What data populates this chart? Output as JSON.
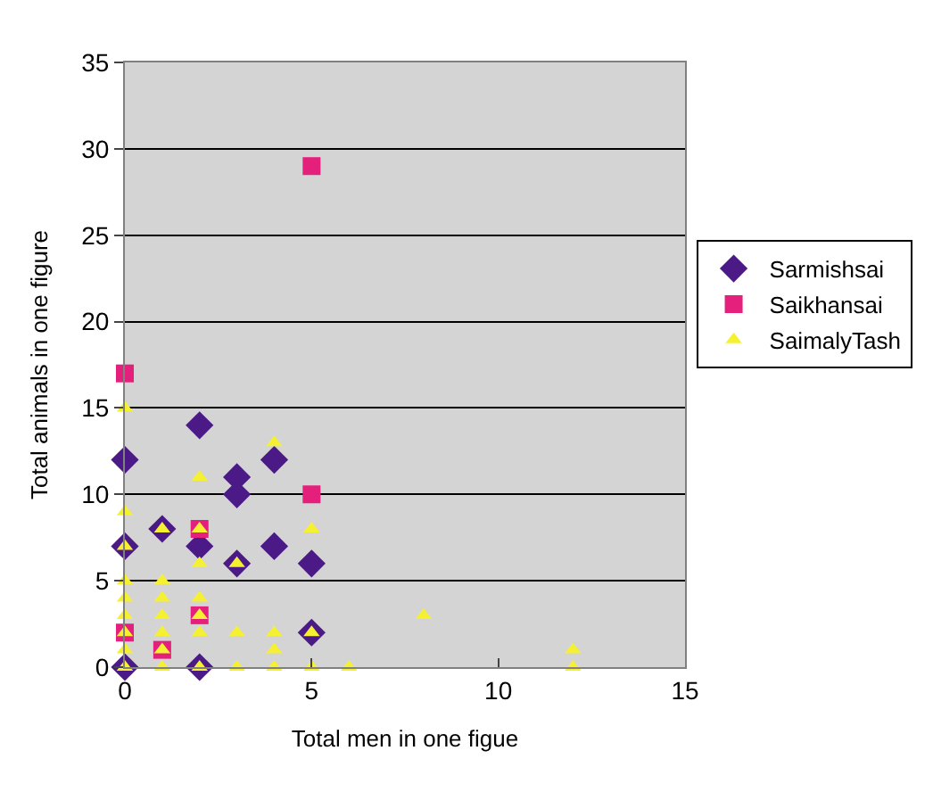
{
  "chart_data": {
    "type": "scatter",
    "xlabel": "Total men in one figue",
    "ylabel": "Total animals in one figure",
    "xlim": [
      0,
      15
    ],
    "xticks": [
      0,
      5,
      10,
      15
    ],
    "ylim": [
      0,
      35
    ],
    "yticks": [
      0,
      5,
      10,
      15,
      20,
      25,
      30,
      35
    ],
    "grid": "y",
    "legend": "right",
    "series": [
      {
        "name": "Sarmishsai",
        "color": "#4b1a87",
        "marker": "diamond",
        "x": [
          0,
          0,
          0,
          1,
          2,
          2,
          2,
          3,
          3,
          3,
          4,
          4,
          5,
          5
        ],
        "values": [
          12,
          7,
          0,
          8,
          14,
          7,
          0,
          11,
          10,
          6,
          12,
          7,
          6,
          2
        ]
      },
      {
        "name": "Saikhansai",
        "color": "#e4207c",
        "marker": "square",
        "x": [
          0,
          5,
          5,
          2,
          2,
          1,
          0
        ],
        "values": [
          17,
          29,
          10,
          8,
          3,
          1,
          2
        ]
      },
      {
        "name": "SaimalyTash",
        "color": "#f5f032",
        "marker": "triangle",
        "x": [
          0,
          0,
          0,
          0,
          0,
          0,
          0,
          0,
          0,
          1,
          1,
          1,
          1,
          1,
          1,
          1,
          2,
          2,
          2,
          2,
          2,
          2,
          2,
          3,
          3,
          3,
          4,
          4,
          4,
          4,
          5,
          5,
          5,
          6,
          8,
          12,
          12
        ],
        "values": [
          15,
          9,
          7,
          5,
          4,
          3,
          2,
          1,
          0,
          8,
          5,
          4,
          3,
          2,
          1,
          0,
          11,
          8,
          6,
          4,
          3,
          2,
          0,
          6,
          2,
          0,
          13,
          2,
          1,
          0,
          8,
          2,
          0,
          0,
          3,
          1,
          0
        ]
      }
    ]
  }
}
